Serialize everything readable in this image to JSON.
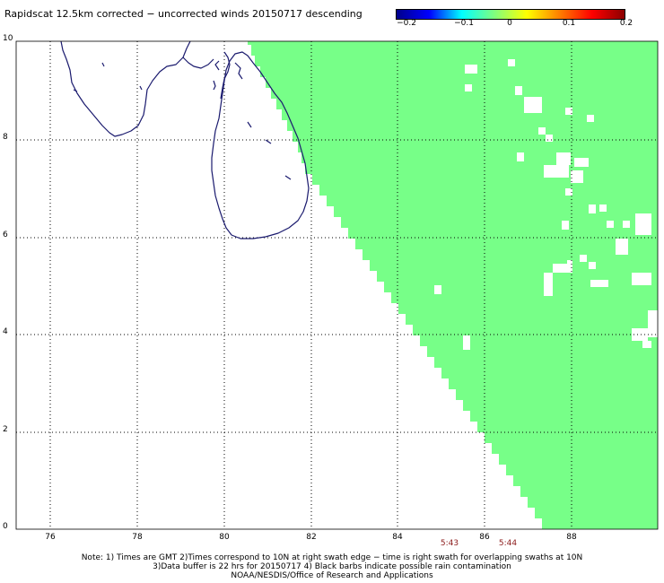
{
  "title": "Rapidscat 12.5km corrected − uncorrected winds 20150717 descending",
  "colorbar": {
    "labels": [
      "−0.2",
      "−0.1",
      "0",
      "0.1",
      "0.2"
    ],
    "stops": [
      "#00008b",
      "#0000ff",
      "#00ffff",
      "#7fff7f",
      "#ffff00",
      "#ff7f00",
      "#ff0000",
      "#8b0000"
    ]
  },
  "swath_color": "#77ff88",
  "coast_color": "#1a1a6e",
  "y_ticks": [
    "10",
    "8",
    "6",
    "4",
    "2",
    "0"
  ],
  "x_ticks": [
    "76",
    "78",
    "80",
    "82",
    "84",
    "86",
    "88"
  ],
  "times": [
    "5:43",
    "5:44"
  ],
  "notes": [
    "Note: 1) Times are GMT 2)Times correspond to 10N at right swath edge − time is right swath for overlapping swaths at 10N",
    "3)Data buffer is 22 hrs for 20150717 4) Black barbs indicate possible rain contamination",
    "NOAA/NESDIS/Office of Research and Applications"
  ]
}
